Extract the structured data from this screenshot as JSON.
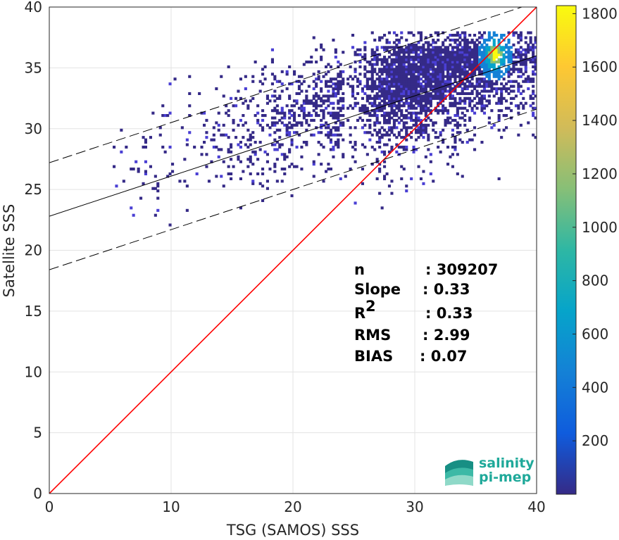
{
  "chart_data": {
    "type": "heatmap",
    "xlabel": "TSG (SAMOS) SSS",
    "ylabel": "Satellite SSS",
    "xlim": [
      0,
      40
    ],
    "ylim": [
      0,
      40
    ],
    "xticks": [
      "0",
      "10",
      "20",
      "30",
      "40"
    ],
    "yticks": [
      "0",
      "5",
      "10",
      "15",
      "20",
      "25",
      "30",
      "35",
      "40"
    ],
    "grid": true,
    "colorbar": {
      "range": [
        0,
        1830
      ],
      "ticks": [
        "200",
        "400",
        "600",
        "800",
        "1000",
        "1200",
        "1400",
        "1600",
        "1800"
      ],
      "colormap": "parula"
    },
    "density_region": {
      "x_range": [
        5,
        40
      ],
      "y_range": [
        21,
        38
      ],
      "peak": [
        36.5,
        36.0
      ],
      "peak_count": 1830
    },
    "lines": [
      {
        "role": "identity",
        "style": "solid",
        "color": "#ff0000",
        "points": [
          [
            0,
            0
          ],
          [
            40,
            40
          ]
        ]
      },
      {
        "role": "regression",
        "style": "solid",
        "color": "#000000",
        "intercept": 22.8,
        "slope": 0.33
      },
      {
        "role": "regression-upper",
        "style": "dashed",
        "color": "#000000",
        "intercept": 27.2,
        "slope": 0.33
      },
      {
        "role": "regression-lower",
        "style": "dashed",
        "color": "#000000",
        "intercept": 18.4,
        "slope": 0.33
      }
    ],
    "stats": [
      {
        "label": "n",
        "value": ": 309207"
      },
      {
        "label": "Slope",
        "value": ": 0.33"
      },
      {
        "label": "R",
        "sup": "2",
        "value": ": 0.33"
      },
      {
        "label": "RMS",
        "value": ": 2.99"
      },
      {
        "label": "BIAS",
        "value": ": 0.07"
      }
    ]
  },
  "logo": {
    "line1": "salinity",
    "line2": "pi-mep"
  },
  "colors": {
    "identity_line": "#ff0000",
    "regression_line": "#000000",
    "logo_text": "#1fa99a",
    "colormap_stops": [
      "#352a87",
      "#0f5cdd",
      "#1481d6",
      "#06a4ca",
      "#2eb7a4",
      "#87bf77",
      "#d1bb59",
      "#fec832",
      "#f9fb0e"
    ]
  }
}
